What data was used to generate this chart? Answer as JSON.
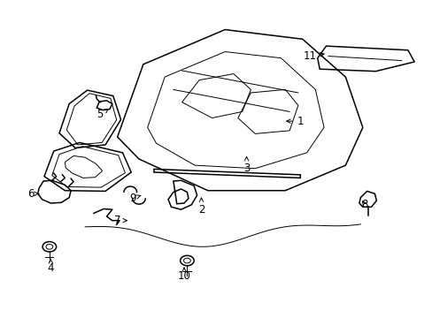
{
  "background_color": "#ffffff",
  "line_color": "#000000",
  "figsize": [
    4.89,
    3.6
  ],
  "dpi": 100,
  "labels_info": {
    "1": [
      0.695,
      0.62,
      -0.04,
      0.0
    ],
    "2": [
      0.465,
      0.34,
      0.0,
      0.04
    ],
    "3": [
      0.57,
      0.47,
      0.0,
      0.04
    ],
    "4": [
      0.115,
      0.155,
      0.0,
      0.03
    ],
    "5": [
      0.23,
      0.64,
      0.02,
      0.02
    ],
    "6": [
      0.068,
      0.39,
      0.02,
      0.0
    ],
    "7": [
      0.27,
      0.305,
      0.03,
      0.0
    ],
    "8": [
      0.845,
      0.355,
      -0.01,
      0.02
    ],
    "9": [
      0.305,
      0.375,
      0.02,
      0.01
    ],
    "10": [
      0.425,
      0.128,
      0.0,
      0.03
    ],
    "11": [
      0.718,
      0.825,
      0.04,
      0.01
    ]
  }
}
